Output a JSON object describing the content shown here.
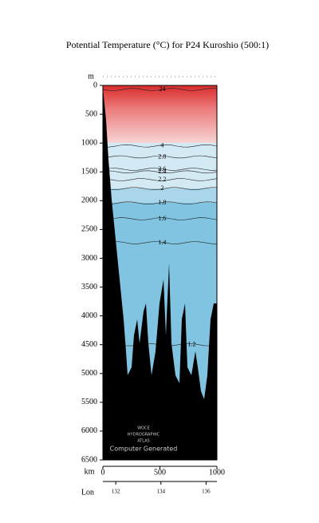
{
  "chart_data": {
    "type": "section",
    "title": "Potential Temperature (°C) for P24 Kuroshio (500:1)",
    "y_label": "m",
    "x_label": "km",
    "x2_label": "Lon",
    "xlim": [
      0,
      1000
    ],
    "xticks": [
      0,
      500,
      1000
    ],
    "x2lim": [
      131.43,
      136.48
    ],
    "x2ticks": [
      132,
      134,
      136
    ],
    "ylim": [
      6500,
      0
    ],
    "yticks": [
      0,
      500,
      1000,
      1500,
      2000,
      2500,
      3000,
      3500,
      4000,
      4500,
      5000,
      5500,
      6000,
      6500
    ],
    "isotherms": [
      {
        "value": 24,
        "depth": 70
      },
      {
        "value": 4,
        "depth": 1050
      },
      {
        "value": 2.8,
        "depth": 1240
      },
      {
        "value": 2.6,
        "depth": 1455
      },
      {
        "value": 2.4,
        "depth": 1500
      },
      {
        "value": 2.2,
        "depth": 1635
      },
      {
        "value": 2,
        "depth": 1790
      },
      {
        "value": 1.8,
        "depth": 2040
      },
      {
        "value": 1.6,
        "depth": 2315
      },
      {
        "value": 1.4,
        "depth": 2730
      },
      {
        "value": 1.2,
        "depth": 4500
      }
    ],
    "annotations": [
      "WOCE",
      "HYDROGRAPHIC",
      "ATLAS",
      "Computer Generated"
    ]
  }
}
